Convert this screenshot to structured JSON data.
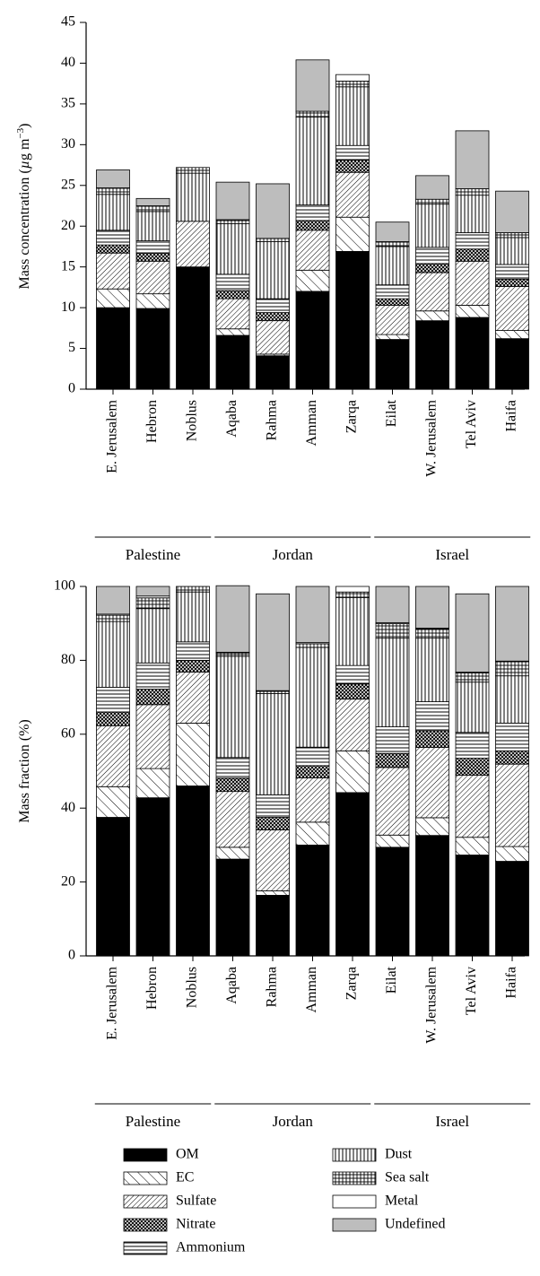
{
  "chart_data": [
    {
      "type": "bar",
      "stacked": true,
      "ylabel": "Mass concentration (µg m⁻³)",
      "ylabel_parts": {
        "pre": "Mass concentration (",
        "mu": "µ",
        "mid": "g m",
        "sup": "−3",
        "post": ")"
      },
      "ylim": [
        0,
        45
      ],
      "yticks": [
        0,
        5,
        10,
        15,
        20,
        25,
        30,
        35,
        40,
        45
      ],
      "categories": [
        "E. Jerusalem",
        "Hebron",
        "Noblus",
        "Aqaba",
        "Rahma",
        "Amman",
        "Zarqa",
        "Eilat",
        "W. Jerusalem",
        "Tel Aviv",
        "Haifa"
      ],
      "groups": [
        {
          "name": "Palestine",
          "from": 0,
          "to": 2
        },
        {
          "name": "Jordan",
          "from": 3,
          "to": 6
        },
        {
          "name": "Israel",
          "from": 7,
          "to": 10
        }
      ],
      "series": [
        {
          "name": "OM",
          "values": [
            10.0,
            9.9,
            15.0,
            6.6,
            4.1,
            12.0,
            16.9,
            6.1,
            8.4,
            8.8,
            6.2
          ]
        },
        {
          "name": "EC",
          "values": [
            2.3,
            1.8,
            0.0,
            0.8,
            0.2,
            2.6,
            4.2,
            0.6,
            1.2,
            1.5,
            1.0
          ]
        },
        {
          "name": "Sulfate",
          "values": [
            4.4,
            4.0,
            5.6,
            3.7,
            4.1,
            4.9,
            5.5,
            3.6,
            4.7,
            5.4,
            5.4
          ]
        },
        {
          "name": "Nitrate",
          "values": [
            1.0,
            1.0,
            0.0,
            1.0,
            1.0,
            1.2,
            1.5,
            0.8,
            1.1,
            1.5,
            0.9
          ]
        },
        {
          "name": "Ammonium",
          "values": [
            1.8,
            1.5,
            0.0,
            2.0,
            1.7,
            1.9,
            1.8,
            1.7,
            2.0,
            2.0,
            1.8
          ]
        },
        {
          "name": "Dust",
          "values": [
            4.4,
            3.6,
            5.9,
            6.2,
            7.0,
            10.8,
            7.2,
            4.7,
            5.3,
            4.6,
            3.3
          ]
        },
        {
          "name": "Sea salt",
          "values": [
            0.8,
            0.7,
            0.7,
            0.5,
            0.4,
            0.7,
            0.7,
            0.6,
            0.6,
            0.8,
            0.6
          ]
        },
        {
          "name": "Metal",
          "values": [
            0.0,
            0.0,
            0.0,
            0.0,
            0.0,
            0.0,
            0.8,
            0.0,
            0.0,
            0.0,
            0.0
          ]
        },
        {
          "name": "Undefined",
          "values": [
            2.2,
            0.9,
            0.0,
            4.6,
            6.7,
            6.3,
            0.0,
            2.4,
            2.9,
            7.1,
            5.1
          ]
        }
      ]
    },
    {
      "type": "bar",
      "stacked": true,
      "ylabel": "Mass fraction (%)",
      "ylim": [
        0,
        100
      ],
      "yticks": [
        0,
        20,
        40,
        60,
        80,
        100
      ],
      "categories": [
        "E. Jerusalem",
        "Hebron",
        "Noblus",
        "Aqaba",
        "Rahma",
        "Amman",
        "Zarqa",
        "Eilat",
        "W. Jerusalem",
        "Tel Aviv",
        "Haifa"
      ],
      "groups": [
        {
          "name": "Palestine",
          "from": 0,
          "to": 2
        },
        {
          "name": "Jordan",
          "from": 3,
          "to": 6
        },
        {
          "name": "Israel",
          "from": 7,
          "to": 10
        }
      ],
      "series": [
        {
          "name": "OM",
          "values": [
            37.5,
            42.8,
            46.0,
            26.2,
            16.4,
            30.0,
            44.2,
            29.4,
            32.6,
            27.3,
            25.6
          ]
        },
        {
          "name": "EC",
          "values": [
            8.3,
            7.9,
            17.0,
            3.2,
            1.2,
            6.2,
            11.3,
            3.3,
            4.8,
            4.8,
            4.0
          ]
        },
        {
          "name": "Sulfate",
          "values": [
            16.5,
            17.3,
            13.8,
            15.1,
            16.5,
            12.0,
            14.0,
            18.3,
            19.0,
            16.8,
            22.3
          ]
        },
        {
          "name": "Nitrate",
          "values": [
            3.7,
            4.2,
            3.2,
            3.6,
            3.4,
            3.3,
            4.1,
            3.8,
            4.5,
            4.6,
            3.6
          ]
        },
        {
          "name": "Ammonium",
          "values": [
            6.7,
            7.1,
            5.0,
            5.6,
            6.1,
            5.0,
            5.0,
            7.2,
            7.9,
            7.0,
            7.5
          ]
        },
        {
          "name": "Dust",
          "values": [
            17.8,
            14.7,
            13.5,
            27.4,
            27.4,
            27.0,
            18.4,
            24.0,
            17.2,
            13.6,
            12.8
          ]
        },
        {
          "name": "Sea salt",
          "values": [
            1.7,
            2.9,
            1.5,
            0.9,
            0.6,
            1.0,
            1.5,
            3.9,
            2.5,
            2.5,
            3.8
          ]
        },
        {
          "name": "Metal",
          "values": [
            0.3,
            0.5,
            0.0,
            0.2,
            0.2,
            0.3,
            1.5,
            0.3,
            0.2,
            0.2,
            0.2
          ]
        },
        {
          "name": "Undefined",
          "values": [
            7.5,
            2.6,
            0.0,
            18.0,
            26.2,
            15.2,
            0.0,
            9.8,
            11.3,
            21.2,
            20.2
          ]
        }
      ]
    }
  ],
  "legend": [
    {
      "name": "OM",
      "pattern": "solid"
    },
    {
      "name": "EC",
      "pattern": "diag-forward-wide"
    },
    {
      "name": "Sulfate",
      "pattern": "diag-back"
    },
    {
      "name": "Nitrate",
      "pattern": "cross"
    },
    {
      "name": "Ammonium",
      "pattern": "horizontal"
    },
    {
      "name": "Dust",
      "pattern": "vertical"
    },
    {
      "name": "Sea salt",
      "pattern": "grid"
    },
    {
      "name": "Metal",
      "pattern": "white"
    },
    {
      "name": "Undefined",
      "pattern": "gray"
    }
  ]
}
